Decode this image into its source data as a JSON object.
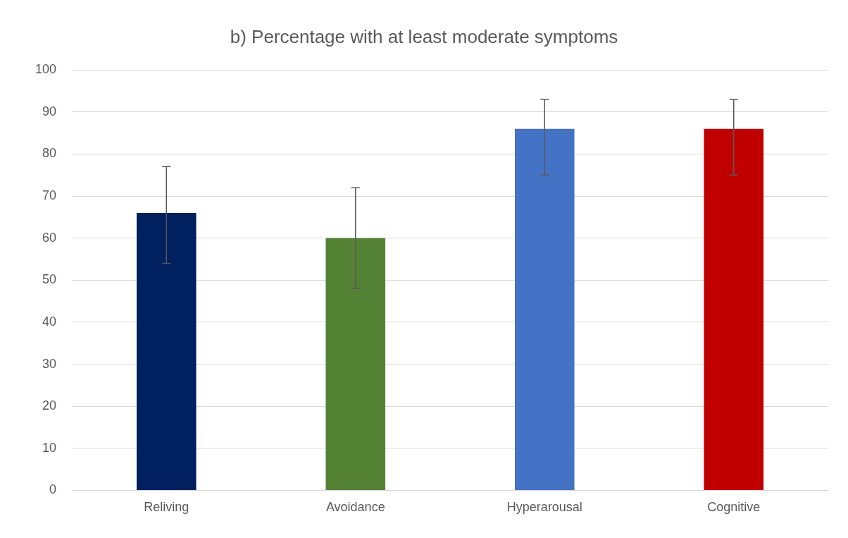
{
  "chart_data": {
    "type": "bar",
    "title": "b) Percentage with at least moderate symptoms",
    "categories": [
      "Reliving",
      "Avoidance",
      "Hyperarousal",
      "Cognitive"
    ],
    "values": [
      66,
      60,
      86,
      86
    ],
    "colors": [
      "#002060",
      "#548235",
      "#4472c4",
      "#c00000"
    ],
    "errors": [
      [
        54,
        77
      ],
      [
        48,
        72
      ],
      [
        75,
        93
      ],
      [
        75,
        93
      ]
    ],
    "ylim": [
      0,
      100
    ],
    "yticks": [
      0,
      10,
      20,
      30,
      40,
      50,
      60,
      70,
      80,
      90,
      100
    ],
    "grid": "y",
    "legend": false
  }
}
